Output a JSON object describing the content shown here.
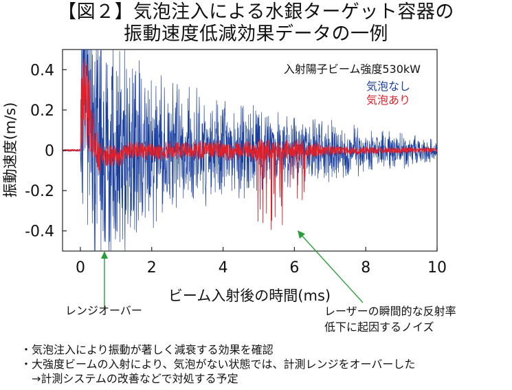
{
  "title_line1": "【図２】気泡注入による水銀ターゲット容器の",
  "title_line2": "振動速度低減効果データの一例",
  "chart_data": {
    "type": "line",
    "xlabel": "ビーム入射後の時間(ms)",
    "ylabel": "振動速度(m/s)",
    "xlim": [
      -0.5,
      10
    ],
    "ylim": [
      -0.5,
      0.5
    ],
    "x_ticks": [
      "0",
      "2",
      "4",
      "6",
      "8",
      "10"
    ],
    "y_ticks": [
      "0.4",
      "0.2",
      "0",
      "-0.2",
      "-0.4"
    ],
    "condition_label": "入射陽子ビーム強度530kW",
    "series": [
      {
        "name": "気泡なし",
        "color": "#1a3f9e",
        "envelope": {
          "t": [
            0,
            0.1,
            0.3,
            0.6,
            1.0,
            1.5,
            2.0,
            2.5,
            3.0,
            4.0,
            5.0,
            6.0,
            7.0,
            8.0,
            9.0,
            10.0
          ],
          "amplitude": [
            0.5,
            0.5,
            0.5,
            0.5,
            0.45,
            0.38,
            0.32,
            0.28,
            0.24,
            0.2,
            0.18,
            0.15,
            0.12,
            0.09,
            0.07,
            0.05
          ]
        }
      },
      {
        "name": "気泡あり",
        "color": "#e0202a",
        "envelope": {
          "t": [
            0,
            0.2,
            0.4,
            0.8,
            1.5,
            3.0,
            5.0,
            6.0,
            7.0,
            8.0,
            10.0
          ],
          "amplitude": [
            0.3,
            0.28,
            0.12,
            0.06,
            0.05,
            0.05,
            0.06,
            0.06,
            0.03,
            0.02,
            0.015
          ]
        }
      }
    ],
    "annotations": [
      {
        "text": "レンジオーバー",
        "x": 0.6,
        "y": -0.5
      },
      {
        "text_line1": "レーザーの瞬間的な反射率",
        "text_line2": "低下に起因するノイズ",
        "x": 6.2,
        "y": -0.42
      }
    ]
  },
  "notes": [
    "・気泡注入により振動が著しく減衰する効果を確認",
    "・大強度ビームの入射により、気泡がない状態では、計測レンジをオーバーした",
    "　→計測システムの改善などで対処する予定"
  ]
}
